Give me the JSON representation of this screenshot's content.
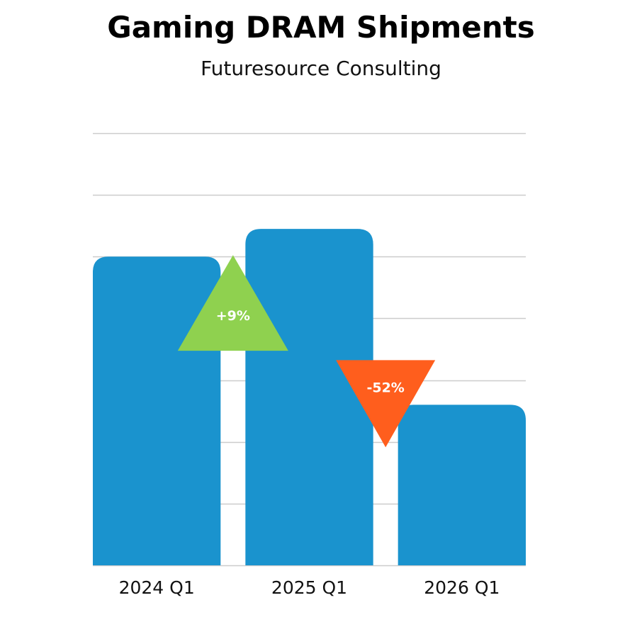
{
  "chart_data": {
    "type": "bar",
    "title": "Gaming DRAM Shipments",
    "subtitle": "Futuresource Consulting",
    "categories": [
      "2024 Q1",
      "2025 Q1",
      "2026 Q1"
    ],
    "values": [
      100,
      109,
      52
    ],
    "ylim": [
      0,
      140
    ],
    "grid": true,
    "xlabel": "",
    "ylabel": "",
    "changes": [
      {
        "label": "+9%",
        "direction": "up",
        "from": "2024 Q1",
        "to": "2025 Q1"
      },
      {
        "label": "-52%",
        "direction": "down",
        "from": "2025 Q1",
        "to": "2026 Q1"
      }
    ],
    "colors": {
      "bar": "#1a93ce",
      "grid": "#cccccc",
      "up": "#8fd14f",
      "down": "#ff5e1d"
    }
  }
}
